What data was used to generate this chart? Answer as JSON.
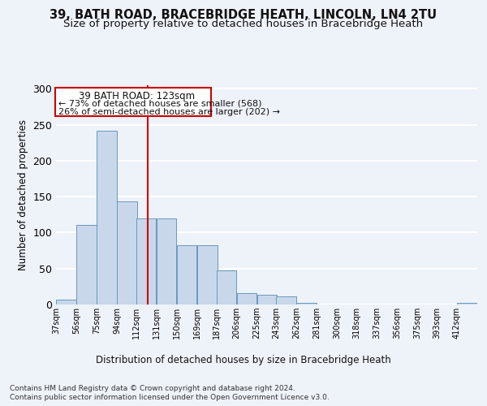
{
  "title1": "39, BATH ROAD, BRACEBRIDGE HEATH, LINCOLN, LN4 2TU",
  "title2": "Size of property relative to detached houses in Bracebridge Heath",
  "xlabel": "Distribution of detached houses by size in Bracebridge Heath",
  "ylabel": "Number of detached properties",
  "footer1": "Contains HM Land Registry data © Crown copyright and database right 2024.",
  "footer2": "Contains public sector information licensed under the Open Government Licence v3.0.",
  "annotation_line1": "39 BATH ROAD: 123sqm",
  "annotation_line2": "← 73% of detached houses are smaller (568)",
  "annotation_line3": "26% of semi-detached houses are larger (202) →",
  "bar_color": "#c8d8ea",
  "bar_edge_color": "#6899bb",
  "vline_color": "#cc0000",
  "vline_x": 123,
  "categories": [
    "37sqm",
    "56sqm",
    "75sqm",
    "94sqm",
    "112sqm",
    "131sqm",
    "150sqm",
    "169sqm",
    "187sqm",
    "206sqm",
    "225sqm",
    "243sqm",
    "262sqm",
    "281sqm",
    "300sqm",
    "318sqm",
    "337sqm",
    "356sqm",
    "375sqm",
    "393sqm",
    "412sqm"
  ],
  "bin_edges": [
    37,
    56,
    75,
    94,
    112,
    131,
    150,
    169,
    187,
    206,
    225,
    243,
    262,
    281,
    300,
    318,
    337,
    356,
    375,
    393,
    412
  ],
  "bin_width": 19,
  "values": [
    7,
    111,
    242,
    143,
    120,
    120,
    82,
    82,
    48,
    16,
    13,
    11,
    2,
    0,
    0,
    0,
    0,
    0,
    0,
    0,
    2
  ],
  "ylim": [
    0,
    305
  ],
  "yticks": [
    0,
    50,
    100,
    150,
    200,
    250,
    300
  ],
  "background_color": "#eef2f9",
  "grid_color": "#ffffff",
  "title_fontsize": 10.5,
  "subtitle_fontsize": 9.5,
  "annotation_box_color": "#ffffff",
  "annotation_box_edge": "#cc0000",
  "ann_text_fontsize": 8.5
}
